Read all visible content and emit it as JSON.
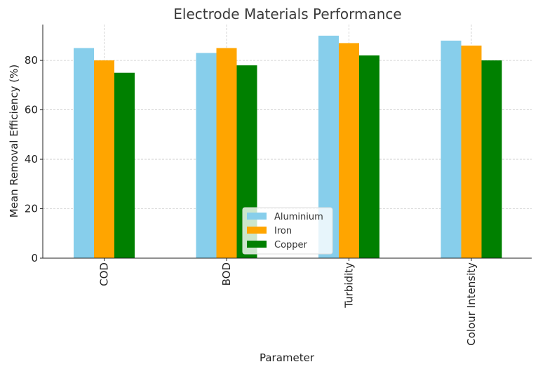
{
  "chart_data": {
    "type": "bar",
    "title": "Electrode Materials Performance",
    "xlabel": "Parameter",
    "ylabel": "Mean Removal Efficiency (%)",
    "categories": [
      "COD",
      "BOD",
      "Turbidity",
      "Colour Intensity"
    ],
    "series": [
      {
        "name": "Aluminium",
        "values": [
          85,
          83,
          90,
          88
        ],
        "color": "#87ceeb"
      },
      {
        "name": "Iron",
        "values": [
          80,
          85,
          87,
          86
        ],
        "color": "#ffa500"
      },
      {
        "name": "Copper",
        "values": [
          75,
          78,
          82,
          80
        ],
        "color": "#008000"
      }
    ],
    "ylim": [
      0,
      94.5
    ],
    "yticks": [
      0,
      20,
      40,
      60,
      80
    ],
    "grid": true,
    "legend_position": "bottom-center"
  }
}
